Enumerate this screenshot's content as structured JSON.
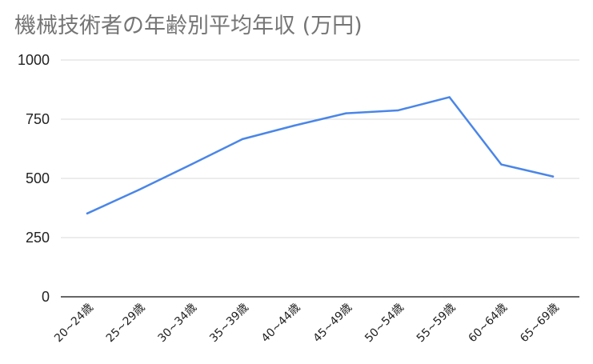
{
  "chart_data": {
    "type": "line",
    "title": "機械技術者の年齢別平均年収 (万円)",
    "xlabel": "",
    "ylabel": "",
    "categories": [
      "20~24歳",
      "25~29歳",
      "30~34歳",
      "35~39歳",
      "40~44歳",
      "45~49歳",
      "50~54歳",
      "55~59歳",
      "60~64歳",
      "65~69歳"
    ],
    "series": [
      {
        "values": [
          352,
          452,
          558,
          666,
          723,
          775,
          787,
          843,
          559,
          508
        ],
        "color": "#4a86e8"
      }
    ],
    "ylim": [
      0,
      1000
    ],
    "yticks": [
      "0",
      "250",
      "500",
      "750",
      "1000"
    ],
    "grid": true,
    "legend": "none"
  }
}
